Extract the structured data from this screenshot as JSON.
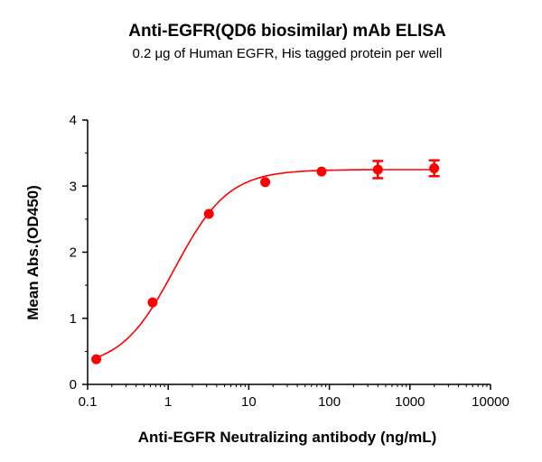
{
  "chart_data": {
    "type": "scatter",
    "title": "Anti-EGFR(QD6 biosimilar) mAb ELISA",
    "subtitle": "0.2 μg of Human EGFR, His tagged protein per well",
    "xlabel": "Anti-EGFR Neutralizing antibody (ng/mL)",
    "ylabel": "Mean Abs.(OD450)",
    "xscale": "log",
    "xlim": [
      0.1,
      10000
    ],
    "ylim": [
      0,
      4
    ],
    "xticks": [
      "0.1",
      "1",
      "10",
      "100",
      "1000",
      "10000"
    ],
    "xtick_values": [
      0.1,
      1,
      10,
      100,
      1000,
      10000
    ],
    "yticks": [
      "0",
      "1",
      "2",
      "3",
      "4"
    ],
    "ytick_values": [
      0,
      1,
      2,
      3,
      4
    ],
    "grid": false,
    "color": "#ff0000",
    "series": [
      {
        "x": [
          0.128,
          0.64,
          3.2,
          16,
          80,
          400,
          2000
        ],
        "y": [
          0.38,
          1.24,
          2.58,
          3.06,
          3.22,
          3.25,
          3.27
        ],
        "error": [
          0.02,
          0.02,
          0.03,
          0.03,
          0.03,
          0.13,
          0.12
        ]
      }
    ],
    "fit": {
      "model": "4PL",
      "bottom": 0.25,
      "top": 3.25,
      "ec50": 1.2,
      "hill": 1.3
    }
  }
}
